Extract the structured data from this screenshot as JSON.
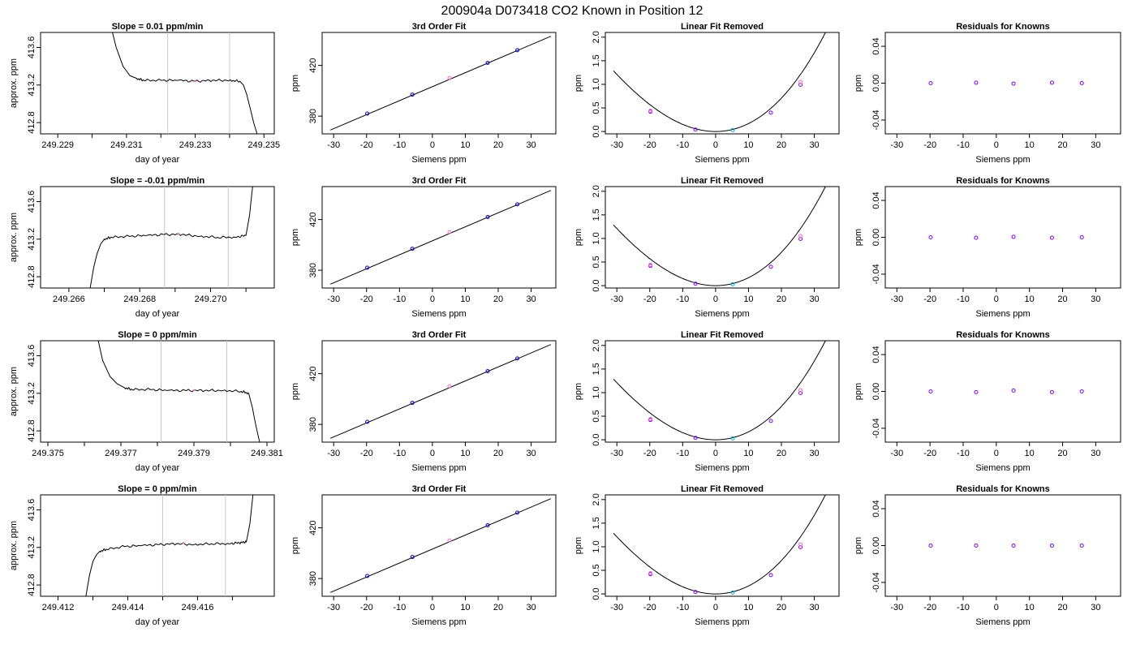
{
  "page": {
    "title": "200904a      D073418   CO2 Known in Position  12"
  },
  "chart_data": [
    {
      "type": "line",
      "title": "Slope =  0.01  ppm/min",
      "xlabel": "day of year",
      "ylabel": "approx. ppm",
      "xlim": [
        249.2285,
        249.2353
      ],
      "ylim": [
        412.68,
        413.76
      ],
      "x_ticks": [
        249.229,
        249.23,
        249.231,
        249.232,
        249.233,
        249.234,
        249.235
      ],
      "x_tick_labels": [
        "249.229",
        "",
        "249.231",
        "",
        "249.233",
        "",
        "249.235"
      ],
      "y_ticks": [
        412.8,
        413.2,
        413.6
      ],
      "y_tick_labels": [
        "412.8",
        "413.2",
        "413.6"
      ],
      "vlines": [
        249.2322,
        249.234
      ],
      "shape": "drop",
      "x": [
        249.2305,
        249.2307,
        249.2309,
        249.2311,
        249.2313,
        249.2315,
        249.232,
        249.2325,
        249.233,
        249.2335,
        249.234,
        249.2343,
        249.2344,
        249.2345,
        249.2346,
        249.2347,
        249.2348
      ],
      "y": [
        413.9,
        413.6,
        413.4,
        413.3,
        413.27,
        413.25,
        413.25,
        413.25,
        413.24,
        413.25,
        413.25,
        413.24,
        413.2,
        413.1,
        412.95,
        412.8,
        412.68
      ]
    },
    {
      "type": "line",
      "title": "3rd Order Fit",
      "xlabel": "Siemens ppm",
      "ylabel": "ppm",
      "xlim": [
        -33.5,
        37.5
      ],
      "ylim": [
        366,
        446
      ],
      "x_ticks": [
        -30,
        -20,
        -10,
        0,
        10,
        20,
        30
      ],
      "x_tick_labels": [
        "-30",
        "-20",
        "-10",
        "0",
        "10",
        "20",
        "30"
      ],
      "y_ticks": [
        380,
        420
      ],
      "y_tick_labels": [
        "380",
        "420"
      ],
      "line_x": [
        -31,
        36
      ],
      "line_y": [
        369,
        443
      ],
      "points_x": [
        -19.8,
        -6.1,
        5.2,
        16.8,
        25.8
      ],
      "points_y": [
        382,
        397,
        410,
        422,
        432
      ]
    },
    {
      "type": "line",
      "title": "Linear Fit Removed",
      "xlabel": "Siemens ppm",
      "ylabel": "ppm",
      "xlim": [
        -33.5,
        37.5
      ],
      "ylim": [
        -0.05,
        2.1
      ],
      "x_ticks": [
        -30,
        -20,
        -10,
        0,
        10,
        20,
        30
      ],
      "x_tick_labels": [
        "-30",
        "-20",
        "-10",
        "0",
        "10",
        "20",
        "30"
      ],
      "y_ticks": [
        0.0,
        0.5,
        1.0,
        1.5,
        2.0
      ],
      "y_tick_labels": [
        "0.0",
        "0.5",
        "1.0",
        "1.5",
        "2.0"
      ],
      "points_x": [
        -19.8,
        -6.1,
        5.2,
        16.8,
        25.8
      ],
      "points_y": [
        0.42,
        0.04,
        0.03,
        0.4,
        0.99
      ]
    },
    {
      "type": "scatter",
      "title": "Residuals for Knowns",
      "xlabel": "Siemens ppm",
      "ylabel": "ppm",
      "xlim": [
        -33.5,
        37.5
      ],
      "ylim": [
        -0.055,
        0.055
      ],
      "x_ticks": [
        -30,
        -20,
        -10,
        0,
        10,
        20,
        30
      ],
      "x_tick_labels": [
        "-30",
        "-20",
        "-10",
        "0",
        "10",
        "20",
        "30"
      ],
      "y_ticks": [
        -0.04,
        0.0,
        0.04
      ],
      "y_tick_labels": [
        "-0.04",
        "0.00",
        "0.04"
      ],
      "points_x": [
        -19.8,
        -6.1,
        5.2,
        16.8,
        25.8
      ],
      "points_y": [
        0.0,
        0.0005,
        -0.0005,
        0.0005,
        0.0
      ]
    },
    {
      "type": "line",
      "title": "Slope =  -0.01  ppm/min",
      "xlabel": "day of year",
      "ylabel": "approx. ppm",
      "xlim": [
        249.2652,
        249.2718
      ],
      "ylim": [
        412.68,
        413.76
      ],
      "x_ticks": [
        249.266,
        249.267,
        249.268,
        249.269,
        249.27,
        249.271
      ],
      "x_tick_labels": [
        "249.266",
        "",
        "249.268",
        "",
        "249.270",
        ""
      ],
      "y_ticks": [
        412.8,
        413.2,
        413.6
      ],
      "y_tick_labels": [
        "412.8",
        "413.2",
        "413.6"
      ],
      "vlines": [
        249.2687,
        249.2705
      ],
      "shape": "rise",
      "x": [
        249.2666,
        249.2667,
        249.2668,
        249.2669,
        249.267,
        249.2672,
        249.2677,
        249.2682,
        249.2687,
        249.2692,
        249.2697,
        249.2702,
        249.2707,
        249.271,
        249.2711,
        249.2712
      ],
      "y": [
        412.68,
        412.9,
        413.05,
        413.15,
        413.2,
        413.22,
        413.23,
        413.24,
        413.25,
        413.25,
        413.23,
        413.22,
        413.22,
        413.24,
        413.45,
        413.8
      ]
    },
    {
      "type": "line",
      "title": "3rd Order Fit",
      "xlabel": "Siemens ppm",
      "ylabel": "ppm",
      "xlim": [
        -33.5,
        37.5
      ],
      "ylim": [
        366,
        446
      ],
      "x_ticks": [
        -30,
        -20,
        -10,
        0,
        10,
        20,
        30
      ],
      "x_tick_labels": [
        "-30",
        "-20",
        "-10",
        "0",
        "10",
        "20",
        "30"
      ],
      "y_ticks": [
        380,
        420
      ],
      "y_tick_labels": [
        "380",
        "420"
      ],
      "line_x": [
        -31,
        36
      ],
      "line_y": [
        369,
        443
      ],
      "points_x": [
        -19.8,
        -6.1,
        5.2,
        16.8,
        25.8
      ],
      "points_y": [
        382,
        397,
        410,
        422,
        432
      ]
    },
    {
      "type": "line",
      "title": "Linear Fit Removed",
      "xlabel": "Siemens ppm",
      "ylabel": "ppm",
      "xlim": [
        -33.5,
        37.5
      ],
      "ylim": [
        -0.05,
        2.1
      ],
      "x_ticks": [
        -30,
        -20,
        -10,
        0,
        10,
        20,
        30
      ],
      "x_tick_labels": [
        "-30",
        "-20",
        "-10",
        "0",
        "10",
        "20",
        "30"
      ],
      "y_ticks": [
        0.0,
        0.5,
        1.0,
        1.5,
        2.0
      ],
      "y_tick_labels": [
        "0.0",
        "0.5",
        "1.0",
        "1.5",
        "2.0"
      ],
      "points_x": [
        -19.8,
        -6.1,
        5.2,
        16.8,
        25.8
      ],
      "points_y": [
        0.42,
        0.04,
        0.03,
        0.4,
        0.99
      ]
    },
    {
      "type": "scatter",
      "title": "Residuals for Knowns",
      "xlabel": "Siemens ppm",
      "ylabel": "ppm",
      "xlim": [
        -33.5,
        37.5
      ],
      "ylim": [
        -0.055,
        0.055
      ],
      "x_ticks": [
        -30,
        -20,
        -10,
        0,
        10,
        20,
        30
      ],
      "x_tick_labels": [
        "-30",
        "-20",
        "-10",
        "0",
        "10",
        "20",
        "30"
      ],
      "y_ticks": [
        -0.04,
        0.0,
        0.04
      ],
      "y_tick_labels": [
        "-0.04",
        "0.00",
        "0.04"
      ],
      "points_x": [
        -19.8,
        -6.1,
        5.2,
        16.8,
        25.8
      ],
      "points_y": [
        0.0,
        -0.0005,
        0.0005,
        -0.0005,
        0.0
      ]
    },
    {
      "type": "line",
      "title": "Slope =  0  ppm/min",
      "xlabel": "day of year",
      "ylabel": "approx. ppm",
      "xlim": [
        249.3748,
        249.3812
      ],
      "ylim": [
        412.68,
        413.76
      ],
      "x_ticks": [
        249.375,
        249.376,
        249.377,
        249.378,
        249.379,
        249.38,
        249.381
      ],
      "x_tick_labels": [
        "249.375",
        "",
        "249.377",
        "",
        "249.379",
        "",
        "249.381"
      ],
      "y_ticks": [
        412.8,
        413.2,
        413.6
      ],
      "y_tick_labels": [
        "412.8",
        "413.2",
        "413.6"
      ],
      "vlines": [
        249.3781,
        249.3799
      ],
      "shape": "drop",
      "x": [
        249.3763,
        249.3765,
        249.3767,
        249.3769,
        249.3771,
        249.3773,
        249.3778,
        249.3783,
        249.3788,
        249.3793,
        249.3798,
        249.3803,
        249.3805,
        249.3806,
        249.3807,
        249.3808
      ],
      "y": [
        413.9,
        413.55,
        413.38,
        413.3,
        413.26,
        413.24,
        413.24,
        413.23,
        413.23,
        413.23,
        413.23,
        413.22,
        413.2,
        413.05,
        412.85,
        412.68
      ]
    },
    {
      "type": "line",
      "title": "3rd Order Fit",
      "xlabel": "Siemens ppm",
      "ylabel": "ppm",
      "xlim": [
        -33.5,
        37.5
      ],
      "ylim": [
        366,
        446
      ],
      "x_ticks": [
        -30,
        -20,
        -10,
        0,
        10,
        20,
        30
      ],
      "x_tick_labels": [
        "-30",
        "-20",
        "-10",
        "0",
        "10",
        "20",
        "30"
      ],
      "y_ticks": [
        380,
        420
      ],
      "y_tick_labels": [
        "380",
        "420"
      ],
      "line_x": [
        -31,
        36
      ],
      "line_y": [
        369,
        443
      ],
      "points_x": [
        -19.8,
        -6.1,
        5.2,
        16.8,
        25.8
      ],
      "points_y": [
        382,
        397,
        410,
        422,
        432
      ]
    },
    {
      "type": "line",
      "title": "Linear Fit Removed",
      "xlabel": "Siemens ppm",
      "ylabel": "ppm",
      "xlim": [
        -33.5,
        37.5
      ],
      "ylim": [
        -0.05,
        2.1
      ],
      "x_ticks": [
        -30,
        -20,
        -10,
        0,
        10,
        20,
        30
      ],
      "x_tick_labels": [
        "-30",
        "-20",
        "-10",
        "0",
        "10",
        "20",
        "30"
      ],
      "y_ticks": [
        0.0,
        0.5,
        1.0,
        1.5,
        2.0
      ],
      "y_tick_labels": [
        "0.0",
        "0.5",
        "1.0",
        "1.5",
        "2.0"
      ],
      "points_x": [
        -19.8,
        -6.1,
        5.2,
        16.8,
        25.8
      ],
      "points_y": [
        0.42,
        0.04,
        0.03,
        0.4,
        0.99
      ]
    },
    {
      "type": "scatter",
      "title": "Residuals for Knowns",
      "xlabel": "Siemens ppm",
      "ylabel": "ppm",
      "xlim": [
        -33.5,
        37.5
      ],
      "ylim": [
        -0.055,
        0.055
      ],
      "x_ticks": [
        -30,
        -20,
        -10,
        0,
        10,
        20,
        30
      ],
      "x_tick_labels": [
        "-30",
        "-20",
        "-10",
        "0",
        "10",
        "20",
        "30"
      ],
      "y_ticks": [
        -0.04,
        0.0,
        0.04
      ],
      "y_tick_labels": [
        "-0.04",
        "0.00",
        "0.04"
      ],
      "points_x": [
        -19.8,
        -6.1,
        5.2,
        16.8,
        25.8
      ],
      "points_y": [
        0.0,
        -0.0008,
        0.001,
        -0.0008,
        0.0
      ]
    },
    {
      "type": "line",
      "title": "Slope =  0  ppm/min",
      "xlabel": "day of year",
      "ylabel": "approx. ppm",
      "xlim": [
        249.4115,
        249.4182
      ],
      "ylim": [
        412.68,
        413.76
      ],
      "x_ticks": [
        249.412,
        249.413,
        249.414,
        249.415,
        249.416,
        249.417
      ],
      "x_tick_labels": [
        "249.412",
        "",
        "249.414",
        "",
        "249.416",
        ""
      ],
      "y_ticks": [
        412.8,
        413.2,
        413.6
      ],
      "y_tick_labels": [
        "412.8",
        "413.2",
        "413.6"
      ],
      "vlines": [
        249.415,
        249.4168
      ],
      "shape": "rise",
      "x": [
        249.4128,
        249.4129,
        249.413,
        249.4131,
        249.4132,
        249.4134,
        249.4139,
        249.4144,
        249.4149,
        249.4154,
        249.4159,
        249.4164,
        249.4169,
        249.4172,
        249.4174,
        249.4175,
        249.4176
      ],
      "y": [
        412.68,
        412.9,
        413.05,
        413.12,
        413.16,
        413.18,
        413.21,
        413.22,
        413.23,
        413.24,
        413.23,
        413.24,
        413.24,
        413.25,
        413.26,
        413.45,
        413.8
      ]
    },
    {
      "type": "line",
      "title": "3rd Order Fit",
      "xlabel": "Siemens ppm",
      "ylabel": "ppm",
      "xlim": [
        -33.5,
        37.5
      ],
      "ylim": [
        366,
        446
      ],
      "x_ticks": [
        -30,
        -20,
        -10,
        0,
        10,
        20,
        30
      ],
      "x_tick_labels": [
        "-30",
        "-20",
        "-10",
        "0",
        "10",
        "20",
        "30"
      ],
      "y_ticks": [
        380,
        420
      ],
      "y_tick_labels": [
        "380",
        "420"
      ],
      "line_x": [
        -31,
        36
      ],
      "line_y": [
        369,
        443
      ],
      "points_x": [
        -19.8,
        -6.1,
        5.2,
        16.8,
        25.8
      ],
      "points_y": [
        382,
        397,
        410,
        422,
        432
      ]
    },
    {
      "type": "line",
      "title": "Linear Fit Removed",
      "xlabel": "Siemens ppm",
      "ylabel": "ppm",
      "xlim": [
        -33.5,
        37.5
      ],
      "ylim": [
        -0.05,
        2.1
      ],
      "x_ticks": [
        -30,
        -20,
        -10,
        0,
        10,
        20,
        30
      ],
      "x_tick_labels": [
        "-30",
        "-20",
        "-10",
        "0",
        "10",
        "20",
        "30"
      ],
      "y_ticks": [
        0.0,
        0.5,
        1.0,
        1.5,
        2.0
      ],
      "y_tick_labels": [
        "0.0",
        "0.5",
        "1.0",
        "1.5",
        "2.0"
      ],
      "points_x": [
        -19.8,
        -6.1,
        5.2,
        16.8,
        25.8
      ],
      "points_y": [
        0.42,
        0.04,
        0.03,
        0.4,
        0.99
      ]
    },
    {
      "type": "scatter",
      "title": "Residuals for Knowns",
      "xlabel": "Siemens ppm",
      "ylabel": "ppm",
      "xlim": [
        -33.5,
        37.5
      ],
      "ylim": [
        -0.055,
        0.055
      ],
      "x_ticks": [
        -30,
        -20,
        -10,
        0,
        10,
        20,
        30
      ],
      "x_tick_labels": [
        "-30",
        "-20",
        "-10",
        "0",
        "10",
        "20",
        "30"
      ],
      "y_ticks": [
        -0.04,
        0.0,
        0.04
      ],
      "y_tick_labels": [
        "-0.04",
        "0.00",
        "0.04"
      ],
      "points_x": [
        -19.8,
        -6.1,
        5.2,
        16.8,
        25.8
      ],
      "points_y": [
        0.0,
        0.0,
        0.0,
        0.0,
        0.0
      ]
    }
  ],
  "colors": {
    "line": "#000000",
    "vline": "#c8c8c8",
    "point_blue": "#0000cc",
    "point_purple": "#8000ff",
    "point_pink": "#ff66cc",
    "point_cyan": "#00aacc"
  }
}
